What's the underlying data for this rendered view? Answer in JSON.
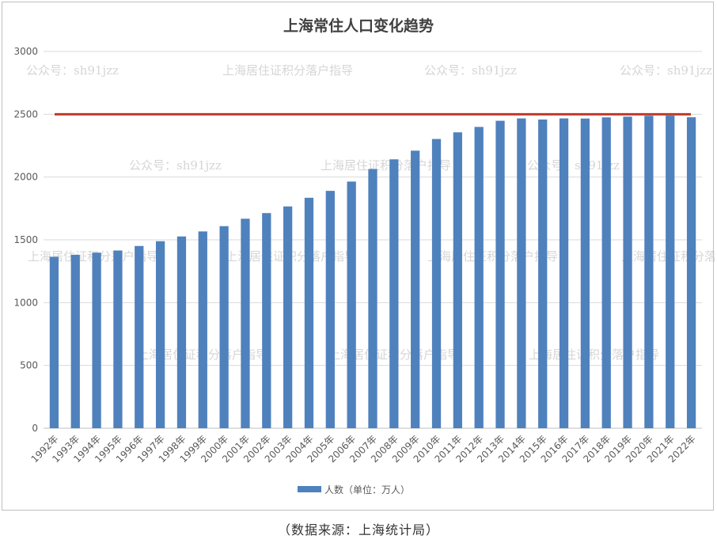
{
  "chart_data": {
    "type": "bar",
    "title": "上海常住人口变化趋势",
    "categories": [
      "1992年",
      "1993年",
      "1994年",
      "1995年",
      "1996年",
      "1997年",
      "1998年",
      "1999年",
      "2000年",
      "2001年",
      "2002年",
      "2003年",
      "2004年",
      "2005年",
      "2006年",
      "2007年",
      "2008年",
      "2009年",
      "2010年",
      "2011年",
      "2012年",
      "2013年",
      "2014年",
      "2015年",
      "2016年",
      "2017年",
      "2018年",
      "2019年",
      "2020年",
      "2021年",
      "2022年"
    ],
    "series": [
      {
        "name": "人数（单位：万人）",
        "values": [
          1365,
          1381,
          1398,
          1415,
          1451,
          1489,
          1527,
          1567,
          1609,
          1668,
          1713,
          1766,
          1835,
          1890,
          1964,
          2064,
          2141,
          2210,
          2303,
          2356,
          2399,
          2448,
          2467,
          2458,
          2467,
          2466,
          2475,
          2481,
          2488,
          2489,
          2476
        ]
      }
    ],
    "reference_line": {
      "value": 2500,
      "color": "#c0392b"
    },
    "yticks": [
      0,
      500,
      1000,
      1500,
      2000,
      2500,
      3000
    ],
    "ylim": [
      0,
      3000
    ],
    "grid": true,
    "legend_position": "bottom",
    "bar_color": "#4f81bd"
  },
  "watermarks": {
    "wechat": "公众号：sh91jzz",
    "guide": "上海居住证积分落户指导"
  },
  "caption": "（数据来源：上海统计局）"
}
